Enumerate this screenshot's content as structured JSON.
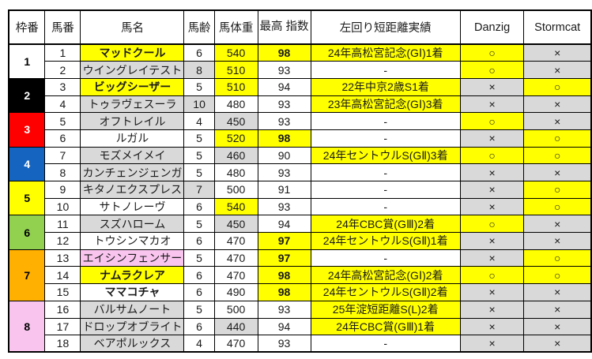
{
  "colors": {
    "highlight_yellow": "#ffff00",
    "cell_gray": "#d9d9d9",
    "cell_pink": "#f9c5ef",
    "cell_white": "#ffffff",
    "hot_red": "#ff0000",
    "mark_gray_text": "#333333"
  },
  "headers": {
    "frame": "枠番",
    "number": "馬番",
    "name": "馬名",
    "age": "馬齢",
    "weight": "馬体重",
    "top_index": "最高\n指数",
    "results": "左回り短距離実績",
    "danzig": "Danzig",
    "stormcat": "Stormcat"
  },
  "frames": [
    {
      "no": "1",
      "bg": "#ffffff",
      "fg": "#000000",
      "span": 2
    },
    {
      "no": "2",
      "bg": "#000000",
      "fg": "#ffffff",
      "span": 2
    },
    {
      "no": "3",
      "bg": "#ff0000",
      "fg": "#ffffff",
      "span": 2
    },
    {
      "no": "4",
      "bg": "#1565c0",
      "fg": "#ffffff",
      "span": 2
    },
    {
      "no": "5",
      "bg": "#ffff00",
      "fg": "#000000",
      "span": 2
    },
    {
      "no": "6",
      "bg": "#92d050",
      "fg": "#000000",
      "span": 2
    },
    {
      "no": "7",
      "bg": "#ffb000",
      "fg": "#000000",
      "span": 3
    },
    {
      "no": "8",
      "bg": "#f9c5ef",
      "fg": "#000000",
      "span": 3
    }
  ],
  "horses": [
    {
      "num": "1",
      "name": "マッドクール",
      "name_bg": "yellow",
      "name_red": true,
      "name_bold": true,
      "age": "6",
      "age_gray": false,
      "weight": "540",
      "weight_bg": "yellow",
      "index": "98",
      "index_hot": true,
      "result": "24年高松宮記念(GⅠ)1着",
      "danzig": "○",
      "stormcat": "×"
    },
    {
      "num": "2",
      "name": "ウイングレイテスト",
      "name_bg": "gray",
      "name_red": false,
      "name_bold": false,
      "age": "8",
      "age_gray": true,
      "weight": "510",
      "weight_bg": "yellow",
      "index": "93",
      "index_hot": false,
      "result": "-",
      "danzig": "○",
      "stormcat": "×"
    },
    {
      "num": "3",
      "name": "ビッグシーザー",
      "name_bg": "yellow",
      "name_red": true,
      "name_bold": true,
      "age": "5",
      "age_gray": false,
      "weight": "510",
      "weight_bg": "yellow",
      "index": "94",
      "index_hot": false,
      "result": "22年中京2歳S1着",
      "danzig": "×",
      "stormcat": "○"
    },
    {
      "num": "4",
      "name": "トゥラヴェスーラ",
      "name_bg": "gray",
      "name_red": false,
      "name_bold": false,
      "age": "10",
      "age_gray": true,
      "weight": "480",
      "weight_bg": "white",
      "index": "93",
      "index_hot": false,
      "result": "23年高松宮記念(GⅠ)3着",
      "danzig": "×",
      "stormcat": "×"
    },
    {
      "num": "5",
      "name": "オフトレイル",
      "name_bg": "gray",
      "name_red": false,
      "name_bold": false,
      "age": "4",
      "age_gray": false,
      "weight": "450",
      "weight_bg": "gray",
      "index": "93",
      "index_hot": false,
      "result": "-",
      "danzig": "○",
      "stormcat": "×"
    },
    {
      "num": "6",
      "name": "ルガル",
      "name_bg": "white",
      "name_red": false,
      "name_bold": false,
      "age": "5",
      "age_gray": false,
      "weight": "520",
      "weight_bg": "yellow",
      "index": "98",
      "index_hot": true,
      "result": "-",
      "danzig": "×",
      "stormcat": "○"
    },
    {
      "num": "7",
      "name": "モズメイメイ",
      "name_bg": "gray",
      "name_red": false,
      "name_bold": false,
      "age": "5",
      "age_gray": false,
      "weight": "460",
      "weight_bg": "gray",
      "index": "90",
      "index_hot": false,
      "result": "24年セントウルS(GⅡ)3着",
      "danzig": "○",
      "stormcat": "○"
    },
    {
      "num": "8",
      "name": "カンチェンジェンガ",
      "name_bg": "gray",
      "name_red": false,
      "name_bold": false,
      "age": "5",
      "age_gray": false,
      "weight": "480",
      "weight_bg": "white",
      "index": "93",
      "index_hot": false,
      "result": "-",
      "danzig": "×",
      "stormcat": "×"
    },
    {
      "num": "9",
      "name": "キタノエクスプレス",
      "name_bg": "gray",
      "name_red": false,
      "name_bold": false,
      "age": "7",
      "age_gray": true,
      "weight": "500",
      "weight_bg": "white",
      "index": "91",
      "index_hot": false,
      "result": "-",
      "danzig": "×",
      "stormcat": "○"
    },
    {
      "num": "10",
      "name": "サトノレーヴ",
      "name_bg": "white",
      "name_red": false,
      "name_bold": false,
      "age": "6",
      "age_gray": false,
      "weight": "540",
      "weight_bg": "yellow",
      "index": "93",
      "index_hot": false,
      "result": "-",
      "danzig": "×",
      "stormcat": "○"
    },
    {
      "num": "11",
      "name": "スズハローム",
      "name_bg": "gray",
      "name_red": false,
      "name_bold": false,
      "age": "5",
      "age_gray": false,
      "weight": "450",
      "weight_bg": "gray",
      "index": "94",
      "index_hot": false,
      "result": "24年CBC賞(GⅢ)2着",
      "danzig": "○",
      "stormcat": "×"
    },
    {
      "num": "12",
      "name": "トウシンマカオ",
      "name_bg": "white",
      "name_red": false,
      "name_bold": false,
      "age": "6",
      "age_gray": false,
      "weight": "470",
      "weight_bg": "white",
      "index": "97",
      "index_hot": true,
      "result": "24年セントウルS(GⅡ)1着",
      "danzig": "×",
      "stormcat": "×"
    },
    {
      "num": "13",
      "name": "エイシンフェンサー",
      "name_bg": "pink",
      "name_red": false,
      "name_bold": false,
      "age": "5",
      "age_gray": false,
      "weight": "470",
      "weight_bg": "white",
      "index": "97",
      "index_hot": true,
      "result": "-",
      "danzig": "×",
      "stormcat": "○"
    },
    {
      "num": "14",
      "name": "ナムラクレア",
      "name_bg": "yellow",
      "name_red": false,
      "name_bold": true,
      "age": "6",
      "age_gray": false,
      "weight": "470",
      "weight_bg": "white",
      "index": "98",
      "index_hot": true,
      "result": "24年高松宮記念(GⅠ)2着",
      "danzig": "○",
      "stormcat": "○"
    },
    {
      "num": "15",
      "name": "ママコチャ",
      "name_bg": "white",
      "name_red": false,
      "name_bold": true,
      "age": "6",
      "age_gray": false,
      "weight": "490",
      "weight_bg": "white",
      "index": "98",
      "index_hot": true,
      "result": "24年セントウルS(GⅡ)2着",
      "danzig": "×",
      "stormcat": "×"
    },
    {
      "num": "16",
      "name": "バルサムノート",
      "name_bg": "gray",
      "name_red": false,
      "name_bold": false,
      "age": "5",
      "age_gray": false,
      "weight": "500",
      "weight_bg": "white",
      "index": "93",
      "index_hot": false,
      "result": "25年淀短距離S(L)2着",
      "danzig": "×",
      "stormcat": "×"
    },
    {
      "num": "17",
      "name": "ドロップオブライト",
      "name_bg": "gray",
      "name_red": false,
      "name_bold": false,
      "age": "6",
      "age_gray": false,
      "weight": "440",
      "weight_bg": "gray",
      "index": "94",
      "index_hot": false,
      "result": "24年CBC賞(GⅢ)1着",
      "danzig": "×",
      "stormcat": "×"
    },
    {
      "num": "18",
      "name": "ベアポルックス",
      "name_bg": "gray",
      "name_red": false,
      "name_bold": false,
      "age": "4",
      "age_gray": false,
      "weight": "470",
      "weight_bg": "white",
      "index": "93",
      "index_hot": false,
      "result": "-",
      "danzig": "×",
      "stormcat": "×"
    }
  ]
}
